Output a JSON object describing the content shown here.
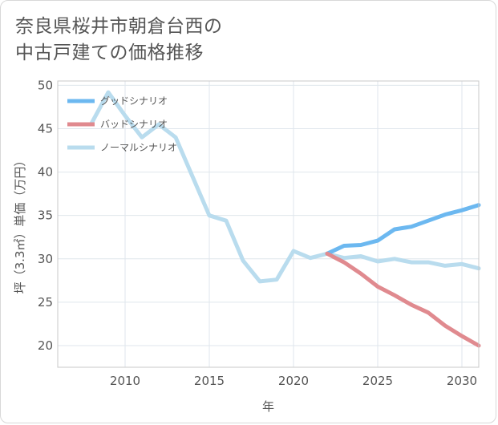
{
  "title_line1": "奈良県桜井市朝倉台西の",
  "title_line2": "中古戸建ての価格推移",
  "chart_data": {
    "type": "line",
    "xlabel": "年",
    "ylabel": "坪（3.3㎡）単価（万円）",
    "xlim": [
      2006,
      2031
    ],
    "ylim": [
      17.5,
      50.5
    ],
    "xticks": [
      2010,
      2015,
      2020,
      2025,
      2030
    ],
    "yticks": [
      20,
      25,
      30,
      35,
      40,
      45,
      50
    ],
    "grid": true,
    "legend_position": "top-left",
    "series": [
      {
        "name": "グッドシナリオ",
        "color": "#6cb8f0",
        "x": [
          2022,
          2023,
          2024,
          2025,
          2026,
          2027,
          2028,
          2029,
          2030,
          2031
        ],
        "y": [
          30.6,
          31.5,
          31.6,
          32.1,
          33.4,
          33.7,
          34.4,
          35.1,
          35.6,
          36.2
        ]
      },
      {
        "name": "バッドシナリオ",
        "color": "#e08a8f",
        "x": [
          2022,
          2023,
          2024,
          2025,
          2026,
          2027,
          2028,
          2029,
          2030,
          2031
        ],
        "y": [
          30.6,
          29.6,
          28.3,
          26.8,
          25.8,
          24.7,
          23.8,
          22.3,
          21.1,
          20.0
        ]
      },
      {
        "name": "ノーマルシナリオ",
        "color": "#b9dcee",
        "x": [
          2008,
          2009,
          2010,
          2011,
          2012,
          2013,
          2014,
          2015,
          2016,
          2017,
          2018,
          2019,
          2020,
          2021,
          2022,
          2023,
          2024,
          2025,
          2026,
          2027,
          2028,
          2029,
          2030,
          2031
        ],
        "y": [
          45.6,
          49.2,
          46.5,
          44.0,
          45.5,
          44.0,
          39.5,
          35.0,
          34.4,
          29.8,
          27.4,
          27.6,
          30.9,
          30.1,
          30.6,
          30.1,
          30.3,
          29.7,
          30.0,
          29.6,
          29.6,
          29.2,
          29.4,
          28.9
        ]
      }
    ]
  }
}
